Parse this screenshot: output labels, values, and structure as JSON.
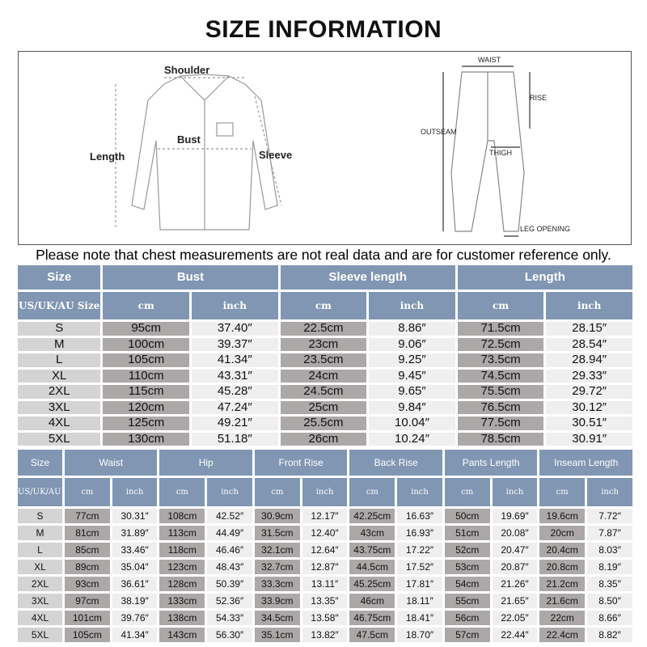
{
  "title": "SIZE INFORMATION",
  "diagram": {
    "shirt_labels": {
      "shoulder": "Shoulder",
      "bust": "Bust",
      "length": "Length",
      "sleeve": "Sleeve"
    },
    "pants_labels": {
      "waist": "WAIST",
      "rise": "RISE",
      "outseam": "OUTSEAM",
      "thigh": "THIGH",
      "leg_opening": "LEG OPENING"
    }
  },
  "note": "Please note that chest measurements are not real data and are for customer reference only.",
  "colors": {
    "header": "#8096b2",
    "size_cell": "#d4d4d4",
    "cm_cell": "#aca8a8",
    "inch_cell": "#efefef"
  },
  "top_table": {
    "groups": [
      "Size",
      "Bust",
      "Sleeve length",
      "Length"
    ],
    "size_sub": "US/UK/AU Size",
    "unit_cm": "cm",
    "unit_inch": "inch",
    "rows": [
      [
        "S",
        "95cm",
        "37.40″",
        "22.5cm",
        "8.86″",
        "71.5cm",
        "28.15″"
      ],
      [
        "M",
        "100cm",
        "39.37″",
        "23cm",
        "9.06″",
        "72.5cm",
        "28.54″"
      ],
      [
        "L",
        "105cm",
        "41.34″",
        "23.5cm",
        "9.25″",
        "73.5cm",
        "28.94″"
      ],
      [
        "XL",
        "110cm",
        "43.31″",
        "24cm",
        "9.45″",
        "74.5cm",
        "29.33″"
      ],
      [
        "2XL",
        "115cm",
        "45.28″",
        "24.5cm",
        "9.65″",
        "75.5cm",
        "29.72″"
      ],
      [
        "3XL",
        "120cm",
        "47.24″",
        "25cm",
        "9.84″",
        "76.5cm",
        "30.12″"
      ],
      [
        "4XL",
        "125cm",
        "49.21″",
        "25.5cm",
        "10.04″",
        "77.5cm",
        "30.51″"
      ],
      [
        "5XL",
        "130cm",
        "51.18″",
        "26cm",
        "10.24″",
        "78.5cm",
        "30.91″"
      ]
    ]
  },
  "bottom_table": {
    "groups": [
      "Size",
      "Waist",
      "Hip",
      "Front Rise",
      "Back Rise",
      "Pants Length",
      "Inseam Length"
    ],
    "size_sub": "US/UK/AU Size",
    "unit_cm": "cm",
    "unit_inch": "inch",
    "rows": [
      [
        "S",
        "77cm",
        "30.31″",
        "108cm",
        "42.52″",
        "30.9cm",
        "12.17″",
        "42.25cm",
        "16.63″",
        "50cm",
        "19.69″",
        "19.6cm",
        "7.72″"
      ],
      [
        "M",
        "81cm",
        "31.89″",
        "113cm",
        "44.49″",
        "31.5cm",
        "12.40″",
        "43cm",
        "16.93″",
        "51cm",
        "20.08″",
        "20cm",
        "7.87″"
      ],
      [
        "L",
        "85cm",
        "33.46″",
        "118cm",
        "46.46″",
        "32.1cm",
        "12.64″",
        "43.75cm",
        "17.22″",
        "52cm",
        "20.47″",
        "20.4cm",
        "8.03″"
      ],
      [
        "XL",
        "89cm",
        "35.04″",
        "123cm",
        "48.43″",
        "32.7cm",
        "12.87″",
        "44.5cm",
        "17.52″",
        "53cm",
        "20.87″",
        "20.8cm",
        "8.19″"
      ],
      [
        "2XL",
        "93cm",
        "36.61″",
        "128cm",
        "50.39″",
        "33.3cm",
        "13.11″",
        "45.25cm",
        "17.81″",
        "54cm",
        "21.26″",
        "21.2cm",
        "8.35″"
      ],
      [
        "3XL",
        "97cm",
        "38.19″",
        "133cm",
        "52.36″",
        "33.9cm",
        "13.35″",
        "46cm",
        "18.11″",
        "55cm",
        "21.65″",
        "21.6cm",
        "8.50″"
      ],
      [
        "4XL",
        "101cm",
        "39.76″",
        "138cm",
        "54.33″",
        "34.5cm",
        "13.58″",
        "46.75cm",
        "18.41″",
        "56cm",
        "22.05″",
        "22cm",
        "8.66″"
      ],
      [
        "5XL",
        "105cm",
        "41.34″",
        "143cm",
        "56.30″",
        "35.1cm",
        "13.82″",
        "47.5cm",
        "18.70″",
        "57cm",
        "22.44″",
        "22.4cm",
        "8.82″"
      ]
    ]
  }
}
